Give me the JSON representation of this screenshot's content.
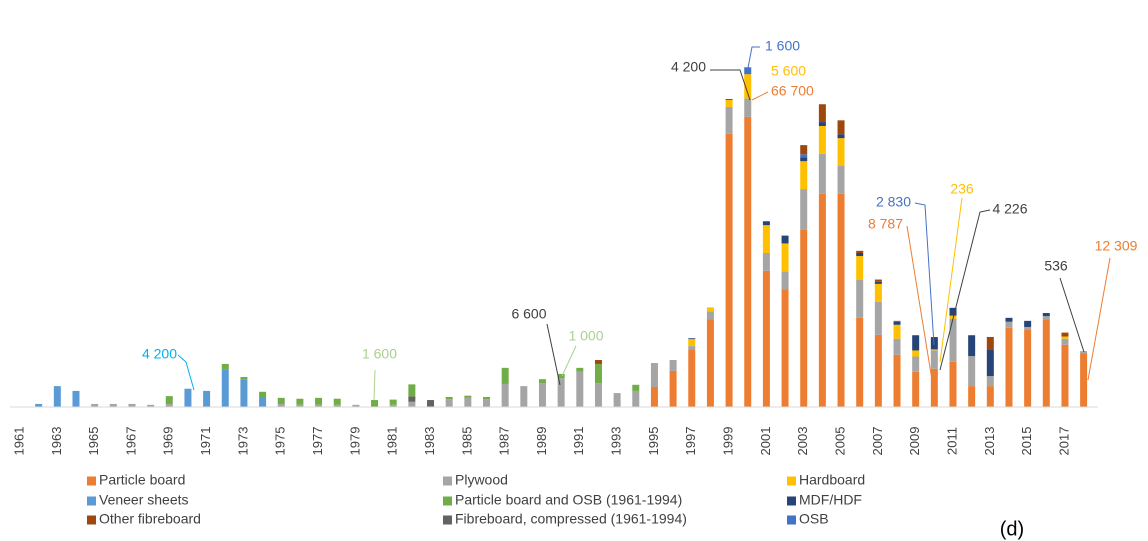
{
  "chart_data": {
    "type": "stacked-bar",
    "panel_label": "(d)",
    "categories": [
      "1961",
      null,
      "1963",
      null,
      "1965",
      null,
      "1967",
      null,
      "1969",
      null,
      "1971",
      null,
      "1973",
      null,
      "1975",
      null,
      "1977",
      null,
      "1979",
      null,
      "1981",
      null,
      "1983",
      null,
      "1985",
      null,
      "1987",
      null,
      "1989",
      null,
      "1991",
      null,
      "1993",
      null,
      "1995",
      null,
      "1997",
      null,
      "1999",
      null,
      "2001",
      null,
      "2003",
      null,
      "2005",
      null,
      "2007",
      null,
      "2009",
      null,
      "2011",
      null,
      "2013",
      null,
      "2015",
      null,
      "2017",
      null
    ],
    "ylim": [
      0,
      80000
    ],
    "series": [
      {
        "name": "Particle board",
        "color": "#ED7D31",
        "values": [
          0,
          0,
          0,
          0,
          0,
          0,
          0,
          0,
          0,
          0,
          0,
          0,
          0,
          0,
          0,
          0,
          0,
          0,
          0,
          0,
          0,
          0,
          0,
          0,
          0,
          0,
          0,
          0,
          0,
          0,
          0,
          0,
          0,
          0,
          4600,
          8300,
          13100,
          20200,
          62800,
          66700,
          31300,
          27100,
          40700,
          49000,
          49000,
          20500,
          16600,
          12000,
          8100,
          8787,
          10400,
          4800,
          4800,
          18200,
          17700,
          20000,
          14300,
          12309
        ],
        "value_labels": [
          null,
          null,
          null,
          null,
          null,
          null,
          null,
          null,
          null,
          null,
          null,
          null,
          null,
          null,
          null,
          null,
          null,
          null,
          null,
          null,
          null,
          null,
          null,
          null,
          null,
          null,
          null,
          null,
          null,
          null,
          null,
          null,
          null,
          null,
          null,
          null,
          null,
          null,
          null,
          "66 700",
          null,
          null,
          null,
          null,
          null,
          null,
          null,
          null,
          null,
          "8 787",
          null,
          null,
          null,
          null,
          null,
          null,
          null,
          "12 309"
        ]
      },
      {
        "name": "Plywood",
        "color": "#A5A5A5",
        "values": [
          0,
          0,
          0,
          0,
          700,
          700,
          700,
          500,
          700,
          0,
          0,
          0,
          0,
          0,
          700,
          500,
          500,
          500,
          500,
          0,
          500,
          1200,
          0,
          1800,
          2100,
          1800,
          5300,
          4800,
          5500,
          6600,
          8100,
          5500,
          3200,
          3700,
          5500,
          2500,
          900,
          1800,
          6200,
          4200,
          4100,
          4100,
          9400,
          9200,
          6400,
          8700,
          7600,
          3700,
          3500,
          4226,
          9900,
          6900,
          2300,
          1400,
          700,
          900,
          1400,
          536
        ],
        "value_labels": [
          null,
          null,
          null,
          null,
          null,
          null,
          null,
          null,
          null,
          null,
          null,
          null,
          null,
          null,
          null,
          null,
          null,
          null,
          null,
          null,
          null,
          null,
          null,
          null,
          null,
          null,
          null,
          null,
          null,
          "6 600",
          null,
          null,
          null,
          null,
          null,
          null,
          null,
          null,
          null,
          "4 200",
          null,
          null,
          null,
          null,
          null,
          null,
          null,
          null,
          null,
          "4 226",
          null,
          null,
          null,
          null,
          null,
          null,
          null,
          "536"
        ]
      },
      {
        "name": "Hardboard",
        "color": "#FFC000",
        "values": [
          0,
          0,
          0,
          0,
          0,
          0,
          0,
          0,
          0,
          0,
          0,
          0,
          0,
          0,
          0,
          0,
          0,
          0,
          0,
          0,
          0,
          0,
          0,
          0,
          0,
          0,
          0,
          0,
          0,
          0,
          0,
          0,
          0,
          0,
          0,
          0,
          1600,
          900,
          1600,
          5600,
          6400,
          6400,
          6400,
          6400,
          6400,
          5500,
          4100,
          3200,
          1400,
          236,
          700,
          0,
          0,
          0,
          0,
          0,
          500,
          0
        ],
        "value_labels": [
          null,
          null,
          null,
          null,
          null,
          null,
          null,
          null,
          null,
          null,
          null,
          null,
          null,
          null,
          null,
          null,
          null,
          null,
          null,
          null,
          null,
          null,
          null,
          null,
          null,
          null,
          null,
          null,
          null,
          null,
          null,
          null,
          null,
          null,
          null,
          null,
          null,
          null,
          null,
          "5 600",
          null,
          null,
          null,
          null,
          null,
          null,
          null,
          null,
          null,
          "236",
          null,
          null,
          null,
          null,
          null,
          null,
          null,
          null
        ]
      },
      {
        "name": "Veneer sheets",
        "color": "#5B9BD5",
        "values": [
          0,
          700,
          4800,
          3700,
          0,
          0,
          0,
          0,
          0,
          4200,
          3700,
          8700,
          6400,
          2300,
          0,
          0,
          0,
          0,
          0,
          0,
          0,
          0,
          0,
          0,
          0,
          0,
          0,
          0,
          0,
          0,
          0,
          0,
          0,
          0,
          0,
          0,
          0,
          0,
          0,
          0,
          0,
          0,
          0,
          0,
          0,
          0,
          0,
          0,
          0,
          0,
          0,
          0,
          0,
          0,
          0,
          0,
          0,
          0
        ],
        "value_labels": [
          null,
          null,
          null,
          null,
          null,
          null,
          null,
          null,
          null,
          "4 200",
          null,
          null,
          null,
          null,
          null,
          null,
          null,
          null,
          null,
          null,
          null,
          null,
          null,
          null,
          null,
          null,
          null,
          null,
          null,
          null,
          null,
          null,
          null,
          null,
          null,
          null,
          null,
          null,
          null,
          null,
          null,
          null,
          null,
          null,
          null,
          null,
          null,
          null,
          null,
          null,
          null,
          null,
          null,
          null,
          null,
          null,
          null,
          null
        ]
      },
      {
        "name": "Particle board and OSB (1961-1994)",
        "color": "#70AD47",
        "values": [
          0,
          0,
          0,
          0,
          0,
          0,
          0,
          0,
          1800,
          0,
          0,
          1200,
          500,
          1200,
          1400,
          1400,
          1600,
          1400,
          0,
          1600,
          1200,
          2800,
          0,
          500,
          500,
          500,
          3700,
          0,
          900,
          1000,
          900,
          4400,
          0,
          1400,
          0,
          0,
          0,
          0,
          0,
          0,
          0,
          0,
          0,
          0,
          0,
          0,
          0,
          0,
          0,
          0,
          0,
          0,
          0,
          0,
          0,
          0,
          0,
          0
        ],
        "value_labels": [
          null,
          null,
          null,
          null,
          null,
          null,
          null,
          null,
          null,
          null,
          null,
          null,
          null,
          null,
          null,
          null,
          null,
          null,
          null,
          "1 600",
          null,
          null,
          null,
          null,
          null,
          null,
          null,
          null,
          null,
          "1 000",
          null,
          null,
          null,
          null,
          null,
          null,
          null,
          null,
          null,
          null,
          null,
          null,
          null,
          null,
          null,
          null,
          null,
          null,
          null,
          null,
          null,
          null,
          null,
          null,
          null,
          null,
          null,
          null
        ]
      },
      {
        "name": "MDF/HDF",
        "color": "#264478",
        "values": [
          0,
          0,
          0,
          0,
          0,
          0,
          0,
          0,
          0,
          0,
          0,
          0,
          0,
          0,
          0,
          0,
          0,
          0,
          0,
          0,
          0,
          0,
          0,
          0,
          0,
          0,
          0,
          0,
          0,
          0,
          0,
          0,
          0,
          0,
          0,
          0,
          200,
          0,
          200,
          0,
          900,
          1800,
          900,
          900,
          900,
          700,
          500,
          700,
          3500,
          2830,
          1800,
          4800,
          6000,
          900,
          1400,
          700,
          0,
          0
        ],
        "value_labels": [
          null,
          null,
          null,
          null,
          null,
          null,
          null,
          null,
          null,
          null,
          null,
          null,
          null,
          null,
          null,
          null,
          null,
          null,
          null,
          null,
          null,
          null,
          null,
          null,
          null,
          null,
          null,
          null,
          null,
          null,
          null,
          null,
          null,
          null,
          null,
          null,
          null,
          null,
          null,
          null,
          null,
          null,
          null,
          null,
          null,
          null,
          null,
          null,
          null,
          "2 830",
          null,
          null,
          null,
          null,
          null,
          null,
          null,
          null
        ]
      },
      {
        "name": "Other fibreboard",
        "color": "#9E480E",
        "values": [
          0,
          0,
          0,
          0,
          0,
          0,
          0,
          0,
          0,
          0,
          0,
          0,
          0,
          0,
          0,
          0,
          0,
          0,
          0,
          0,
          0,
          0,
          0,
          0,
          0,
          0,
          0,
          0,
          0,
          0,
          0,
          900,
          0,
          0,
          0,
          0,
          0,
          0,
          0,
          0,
          0,
          0,
          2100,
          4100,
          3200,
          500,
          500,
          200,
          0,
          0,
          0,
          0,
          3000,
          0,
          0,
          0,
          900,
          0
        ]
      },
      {
        "name": "Fibreboard, compressed (1961-1994)",
        "color": "#636363",
        "values": [
          0,
          0,
          0,
          0,
          0,
          0,
          0,
          0,
          0,
          0,
          0,
          0,
          0,
          0,
          0,
          0,
          0,
          0,
          0,
          0,
          0,
          1200,
          1600,
          0,
          0,
          0,
          0,
          0,
          0,
          0,
          0,
          0,
          0,
          0,
          0,
          0,
          0,
          0,
          0,
          0,
          0,
          0,
          0,
          0,
          0,
          0,
          0,
          0,
          0,
          0,
          0,
          0,
          0,
          0,
          0,
          0,
          0,
          0
        ]
      },
      {
        "name": "OSB",
        "color": "#4472C4",
        "values": [
          0,
          0,
          0,
          0,
          0,
          0,
          0,
          0,
          0,
          0,
          0,
          0,
          0,
          0,
          0,
          0,
          0,
          0,
          0,
          0,
          0,
          0,
          0,
          0,
          0,
          0,
          0,
          0,
          0,
          0,
          0,
          0,
          0,
          0,
          0,
          0,
          0,
          0,
          0,
          1600,
          0,
          0,
          700,
          0,
          0,
          0,
          0,
          0,
          0,
          0,
          0,
          0,
          0,
          0,
          0,
          0,
          0,
          0
        ],
        "value_labels": [
          null,
          null,
          null,
          null,
          null,
          null,
          null,
          null,
          null,
          null,
          null,
          null,
          null,
          null,
          null,
          null,
          null,
          null,
          null,
          null,
          null,
          null,
          null,
          null,
          null,
          null,
          null,
          null,
          null,
          null,
          null,
          null,
          null,
          null,
          null,
          null,
          null,
          null,
          null,
          "1 600",
          null,
          null,
          null,
          null,
          null,
          null,
          null,
          null,
          null,
          null,
          null,
          null,
          null,
          null,
          null,
          null,
          null,
          null
        ]
      }
    ]
  }
}
